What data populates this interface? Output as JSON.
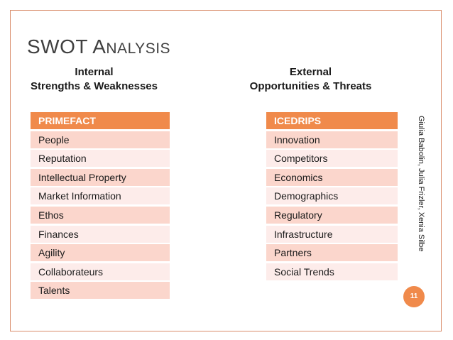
{
  "slide": {
    "title_first": "SWOT A",
    "title_rest": "NALYSIS",
    "left_heading_line1": "Internal",
    "left_heading_line2": "Strengths & Weaknesses",
    "right_heading_line1": "External",
    "right_heading_line2": "Opportunities & Threats",
    "author_text": "Giulia Babolin, Julia Frizler, Xenia Silbe",
    "page_number": "11"
  },
  "left_table": {
    "header": "PRIMEFACT",
    "items": [
      "People",
      "Reputation",
      "Intellectual Property",
      "Market Information",
      "Ethos",
      "Finances",
      "Agility",
      "Collaborateurs",
      "Talents"
    ]
  },
  "right_table": {
    "header": "ICEDRIPS",
    "items": [
      "Innovation",
      "Competitors",
      "Economics",
      "Demographics",
      "Regulatory",
      "Infrastructure",
      "Partners",
      "Social Trends"
    ]
  },
  "colors": {
    "accent": "#f08a4b",
    "row_dark": "#fbd6cc",
    "row_light": "#fdecea"
  }
}
